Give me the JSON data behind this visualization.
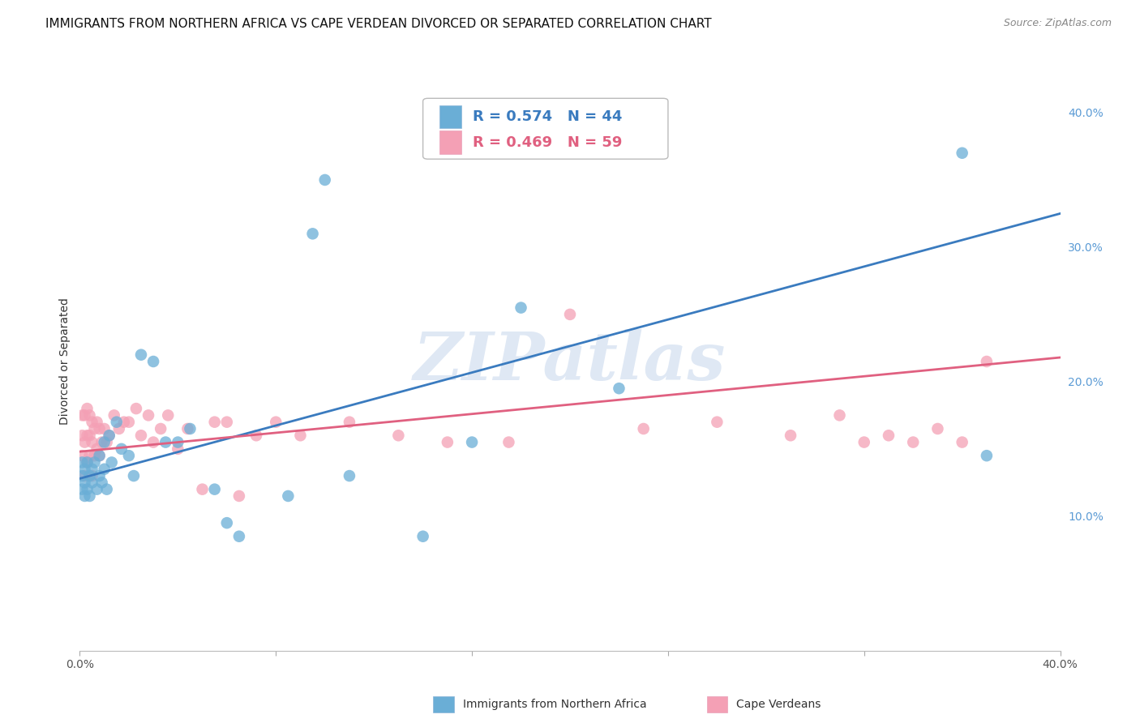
{
  "title": "IMMIGRANTS FROM NORTHERN AFRICA VS CAPE VERDEAN DIVORCED OR SEPARATED CORRELATION CHART",
  "source": "Source: ZipAtlas.com",
  "ylabel": "Divorced or Separated",
  "xlim": [
    0.0,
    0.4
  ],
  "ylim": [
    0.0,
    0.43
  ],
  "x_ticks": [
    0.0,
    0.08,
    0.16,
    0.24,
    0.32,
    0.4
  ],
  "x_tick_labels": [
    "0.0%",
    "",
    "",
    "",
    "",
    "40.0%"
  ],
  "y_ticks_right": [
    0.1,
    0.2,
    0.3,
    0.4
  ],
  "y_tick_labels_right": [
    "10.0%",
    "20.0%",
    "30.0%",
    "40.0%"
  ],
  "blue_label": "Immigrants from Northern Africa",
  "pink_label": "Cape Verdeans",
  "blue_R": 0.574,
  "blue_N": 44,
  "pink_R": 0.469,
  "pink_N": 59,
  "blue_line_x0": 0.0,
  "blue_line_y0": 0.128,
  "blue_line_x1": 0.4,
  "blue_line_y1": 0.325,
  "pink_line_x0": 0.0,
  "pink_line_y0": 0.148,
  "pink_line_x1": 0.4,
  "pink_line_y1": 0.218,
  "blue_scatter_x": [
    0.001,
    0.001,
    0.001,
    0.002,
    0.002,
    0.002,
    0.003,
    0.003,
    0.004,
    0.004,
    0.005,
    0.005,
    0.006,
    0.007,
    0.008,
    0.008,
    0.009,
    0.01,
    0.01,
    0.011,
    0.012,
    0.013,
    0.015,
    0.017,
    0.02,
    0.022,
    0.025,
    0.03,
    0.035,
    0.04,
    0.045,
    0.055,
    0.06,
    0.065,
    0.085,
    0.095,
    0.1,
    0.11,
    0.14,
    0.16,
    0.18,
    0.22,
    0.36,
    0.37
  ],
  "blue_scatter_y": [
    0.12,
    0.13,
    0.14,
    0.115,
    0.125,
    0.135,
    0.12,
    0.14,
    0.115,
    0.13,
    0.125,
    0.135,
    0.14,
    0.12,
    0.13,
    0.145,
    0.125,
    0.135,
    0.155,
    0.12,
    0.16,
    0.14,
    0.17,
    0.15,
    0.145,
    0.13,
    0.22,
    0.215,
    0.155,
    0.155,
    0.165,
    0.12,
    0.095,
    0.085,
    0.115,
    0.31,
    0.35,
    0.13,
    0.085,
    0.155,
    0.255,
    0.195,
    0.37,
    0.145
  ],
  "pink_scatter_x": [
    0.001,
    0.001,
    0.001,
    0.002,
    0.002,
    0.002,
    0.003,
    0.003,
    0.003,
    0.004,
    0.004,
    0.004,
    0.005,
    0.005,
    0.005,
    0.006,
    0.006,
    0.007,
    0.007,
    0.008,
    0.008,
    0.009,
    0.01,
    0.011,
    0.012,
    0.014,
    0.016,
    0.018,
    0.02,
    0.023,
    0.025,
    0.028,
    0.03,
    0.033,
    0.036,
    0.04,
    0.044,
    0.05,
    0.055,
    0.06,
    0.065,
    0.072,
    0.08,
    0.09,
    0.11,
    0.13,
    0.15,
    0.175,
    0.2,
    0.23,
    0.26,
    0.29,
    0.31,
    0.32,
    0.33,
    0.34,
    0.35,
    0.36,
    0.37
  ],
  "pink_scatter_y": [
    0.145,
    0.16,
    0.175,
    0.13,
    0.155,
    0.175,
    0.14,
    0.16,
    0.18,
    0.145,
    0.16,
    0.175,
    0.13,
    0.155,
    0.17,
    0.145,
    0.165,
    0.15,
    0.17,
    0.145,
    0.165,
    0.155,
    0.165,
    0.155,
    0.16,
    0.175,
    0.165,
    0.17,
    0.17,
    0.18,
    0.16,
    0.175,
    0.155,
    0.165,
    0.175,
    0.15,
    0.165,
    0.12,
    0.17,
    0.17,
    0.115,
    0.16,
    0.17,
    0.16,
    0.17,
    0.16,
    0.155,
    0.155,
    0.25,
    0.165,
    0.17,
    0.16,
    0.175,
    0.155,
    0.16,
    0.155,
    0.165,
    0.155,
    0.215
  ],
  "blue_color": "#6aaed6",
  "pink_color": "#f4a0b5",
  "blue_line_color": "#3a7bbf",
  "pink_line_color": "#e06080",
  "watermark_text": "ZIPatlas",
  "background_color": "#ffffff",
  "grid_color": "#d0d0d0",
  "title_fontsize": 11,
  "axis_label_fontsize": 10,
  "tick_fontsize": 10,
  "legend_fontsize": 13
}
